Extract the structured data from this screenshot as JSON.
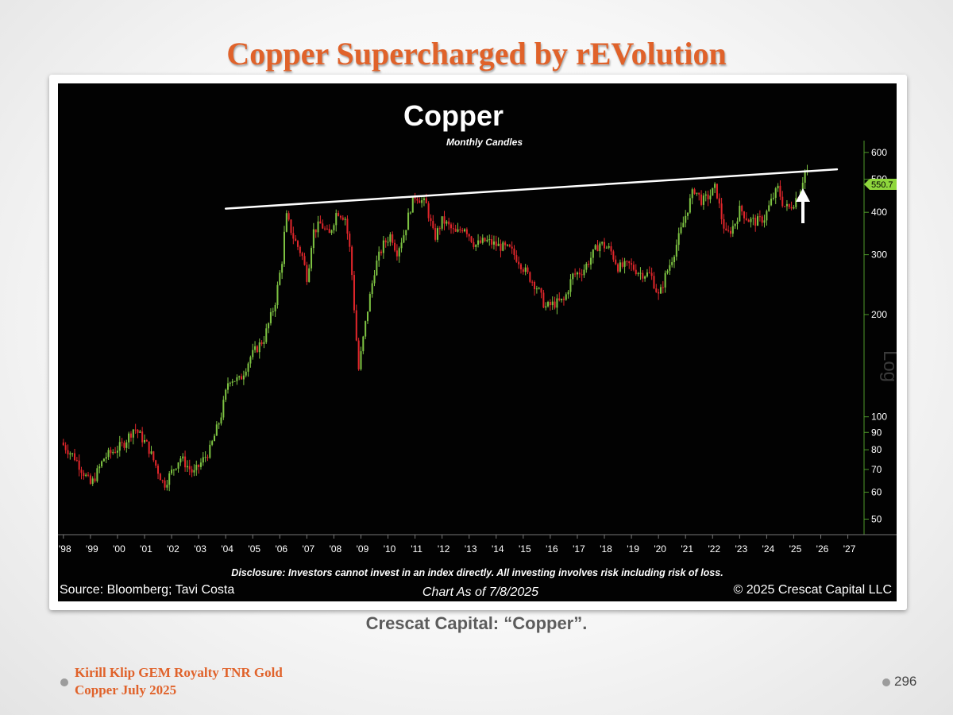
{
  "slide": {
    "title": "Copper Supercharged by rEVolution",
    "caption": "Crescat Capital: “Copper”.",
    "footer_line1": "Kirill Klip GEM Royalty TNR Gold",
    "footer_line2": "Copper July 2025",
    "page_number": "296"
  },
  "colors": {
    "title": "#e0622a",
    "chart_background": "#020202",
    "up_candle": "#7dc242",
    "down_candle": "#e0262b",
    "axis_green": "#4f9a2a",
    "price_tag": "#8ed63c",
    "trendline": "#ffffff"
  },
  "chart_data": {
    "type": "candlestick",
    "title": "Copper",
    "subtitle": "Monthly Candles",
    "y_scale": "log",
    "y_axis_label": "Log",
    "ylim": [
      45,
      650
    ],
    "xlim": [
      1997.8,
      2027.6
    ],
    "y_ticks": [
      50,
      60,
      70,
      80,
      90,
      100,
      200,
      300,
      400,
      500,
      600
    ],
    "x_tick_labels": [
      "'98",
      "'99",
      "'00",
      "'01",
      "'02",
      "'03",
      "'04",
      "'05",
      "'06",
      "'07",
      "'08",
      "'09",
      "'10",
      "'11",
      "'12",
      "'13",
      "'14",
      "'15",
      "'16",
      "'17",
      "'18",
      "'19",
      "'20",
      "'21",
      "'22",
      "'23",
      "'24",
      "'25",
      "'26",
      "'27"
    ],
    "last_price_label": "550.7",
    "price_path": [
      [
        1998.0,
        84
      ],
      [
        1998.5,
        76
      ],
      [
        1999.1,
        63
      ],
      [
        1999.6,
        76
      ],
      [
        2000.3,
        83
      ],
      [
        2000.7,
        93
      ],
      [
        2001.2,
        82
      ],
      [
        2001.8,
        63
      ],
      [
        2002.4,
        76
      ],
      [
        2002.9,
        68
      ],
      [
        2003.5,
        80
      ],
      [
        2003.9,
        100
      ],
      [
        2004.2,
        130
      ],
      [
        2004.6,
        128
      ],
      [
        2005.0,
        150
      ],
      [
        2005.5,
        170
      ],
      [
        2005.9,
        215
      ],
      [
        2006.2,
        300
      ],
      [
        2006.3,
        395
      ],
      [
        2006.6,
        335
      ],
      [
        2006.9,
        300
      ],
      [
        2007.1,
        255
      ],
      [
        2007.3,
        350
      ],
      [
        2007.6,
        370
      ],
      [
        2007.9,
        340
      ],
      [
        2008.2,
        405
      ],
      [
        2008.5,
        385
      ],
      [
        2008.7,
        300
      ],
      [
        2008.9,
        175
      ],
      [
        2009.0,
        138
      ],
      [
        2009.3,
        200
      ],
      [
        2009.6,
        275
      ],
      [
        2009.9,
        320
      ],
      [
        2010.2,
        345
      ],
      [
        2010.4,
        305
      ],
      [
        2010.7,
        350
      ],
      [
        2010.9,
        410
      ],
      [
        2011.1,
        450
      ],
      [
        2011.5,
        420
      ],
      [
        2011.8,
        335
      ],
      [
        2012.1,
        380
      ],
      [
        2012.6,
        345
      ],
      [
        2012.9,
        365
      ],
      [
        2013.3,
        320
      ],
      [
        2013.7,
        330
      ],
      [
        2014.1,
        320
      ],
      [
        2014.6,
        310
      ],
      [
        2014.9,
        290
      ],
      [
        2015.2,
        265
      ],
      [
        2015.6,
        240
      ],
      [
        2015.9,
        210
      ],
      [
        2016.2,
        215
      ],
      [
        2016.6,
        220
      ],
      [
        2016.9,
        260
      ],
      [
        2017.3,
        270
      ],
      [
        2017.7,
        305
      ],
      [
        2017.9,
        325
      ],
      [
        2018.3,
        310
      ],
      [
        2018.6,
        275
      ],
      [
        2019.0,
        280
      ],
      [
        2019.4,
        265
      ],
      [
        2019.8,
        262
      ],
      [
        2020.1,
        225
      ],
      [
        2020.3,
        255
      ],
      [
        2020.6,
        295
      ],
      [
        2020.9,
        350
      ],
      [
        2021.2,
        420
      ],
      [
        2021.4,
        470
      ],
      [
        2021.7,
        430
      ],
      [
        2022.0,
        450
      ],
      [
        2022.2,
        475
      ],
      [
        2022.4,
        390
      ],
      [
        2022.6,
        340
      ],
      [
        2022.9,
        370
      ],
      [
        2023.1,
        410
      ],
      [
        2023.4,
        380
      ],
      [
        2023.7,
        375
      ],
      [
        2024.0,
        385
      ],
      [
        2024.3,
        440
      ],
      [
        2024.5,
        470
      ],
      [
        2024.7,
        420
      ],
      [
        2024.9,
        410
      ],
      [
        2025.1,
        430
      ],
      [
        2025.3,
        460
      ],
      [
        2025.5,
        530
      ]
    ],
    "trendline": {
      "start": [
        2004.0,
        410
      ],
      "end": [
        2026.6,
        535
      ]
    },
    "annotation": "up-arrow",
    "disclosure": "Disclosure: Investors cannot invest in an index directly. All investing involves risk including risk of loss.",
    "source": "Source: Bloomberg; Tavi Costa",
    "chart_date": "Chart As of 7/8/2025",
    "copyright": "© 2025 Crescat Capital LLC"
  }
}
